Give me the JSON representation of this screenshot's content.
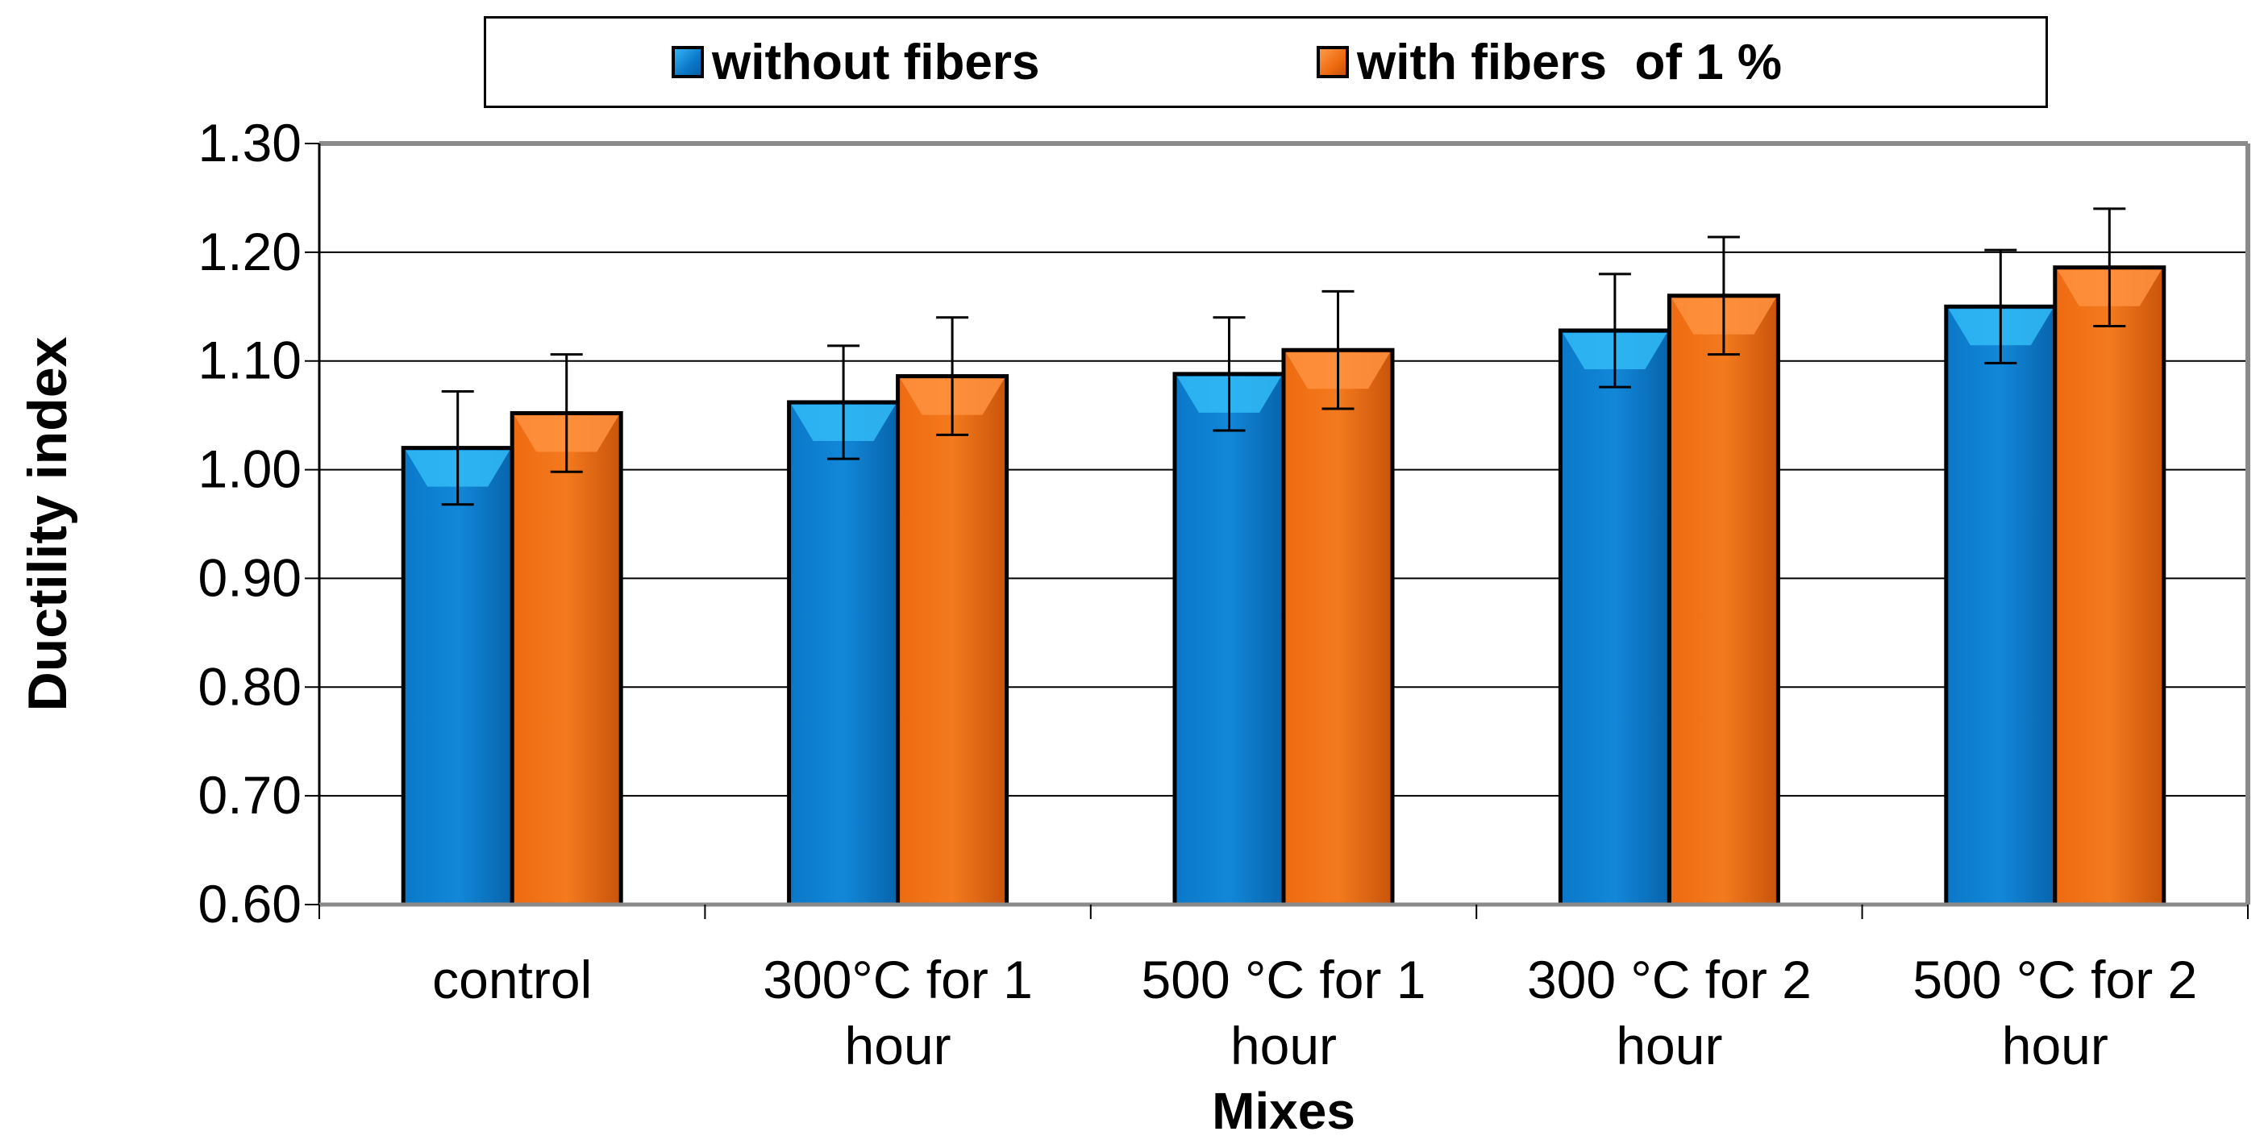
{
  "chart_data": {
    "type": "bar",
    "title": "",
    "xlabel": "Mixes",
    "ylabel": "Ductility index",
    "ylim": [
      0.6,
      1.3
    ],
    "yticks": [
      "0.60",
      "0.70",
      "0.80",
      "0.90",
      "1.00",
      "1.10",
      "1.20",
      "1.30"
    ],
    "grid": true,
    "legend_position": "top",
    "categories": [
      [
        "control"
      ],
      [
        "300°C   for 1",
        "hour"
      ],
      [
        "500 °C   for 1",
        "hour"
      ],
      [
        "300 °C for 2",
        "hour"
      ],
      [
        "500 °C   for 2",
        "hour"
      ]
    ],
    "series": [
      {
        "name": "without fibers",
        "color": "#0a78c8",
        "values": [
          1.02,
          1.062,
          1.088,
          1.128,
          1.15
        ],
        "error": [
          0.052,
          0.052,
          0.052,
          0.052,
          0.052
        ]
      },
      {
        "name": "with fibers  of 1 %",
        "color": "#ee6a10",
        "values": [
          1.052,
          1.086,
          1.11,
          1.16,
          1.186
        ],
        "error": [
          0.054,
          0.054,
          0.054,
          0.054,
          0.054
        ]
      }
    ]
  }
}
